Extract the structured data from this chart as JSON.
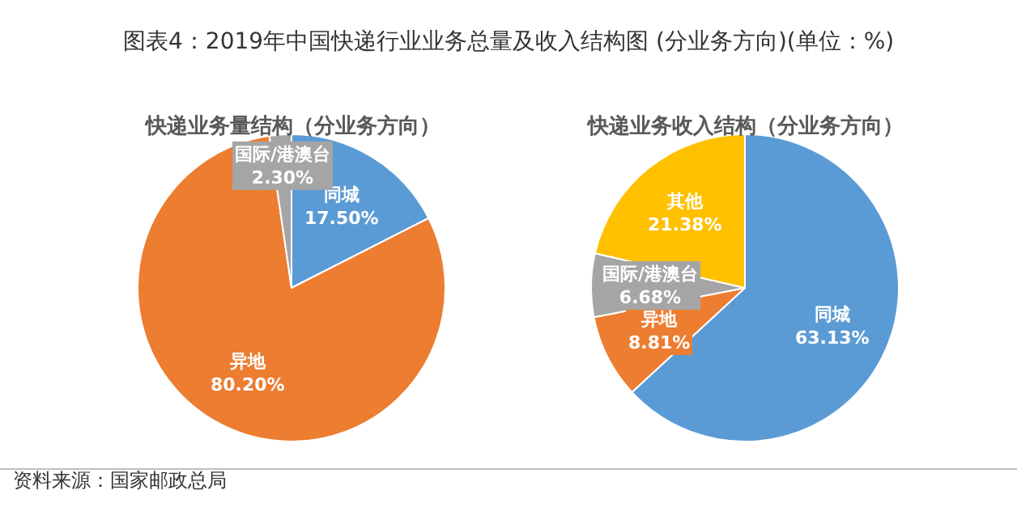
{
  "chart_data": [
    {
      "type": "pie",
      "title": "图表4：2019年中国快递行业业务总量及收入结构图 (分业务方向)(单位：%)",
      "subtitle": "快递业务量结构（分业务方向）",
      "categories": [
        "同城",
        "异地",
        "国际/港澳台"
      ],
      "values": [
        17.5,
        80.2,
        2.3
      ],
      "colors": [
        "#5b9bd5",
        "#ed7d31",
        "#a5a5a5"
      ],
      "value_labels": [
        "17.50%",
        "80.20%",
        "2.30%"
      ]
    },
    {
      "type": "pie",
      "subtitle": "快递业务收入结构（分业务方向）",
      "categories": [
        "同城",
        "异地",
        "国际/港澳台",
        "其他"
      ],
      "values": [
        63.13,
        8.81,
        6.68,
        21.38
      ],
      "colors": [
        "#5b9bd5",
        "#ed7d31",
        "#a5a5a5",
        "#ffc000"
      ],
      "value_labels": [
        "63.13%",
        "8.81%",
        "6.68%",
        "21.38%"
      ],
      "annotations": [
        "资料来源：国家邮政总局"
      ]
    }
  ]
}
